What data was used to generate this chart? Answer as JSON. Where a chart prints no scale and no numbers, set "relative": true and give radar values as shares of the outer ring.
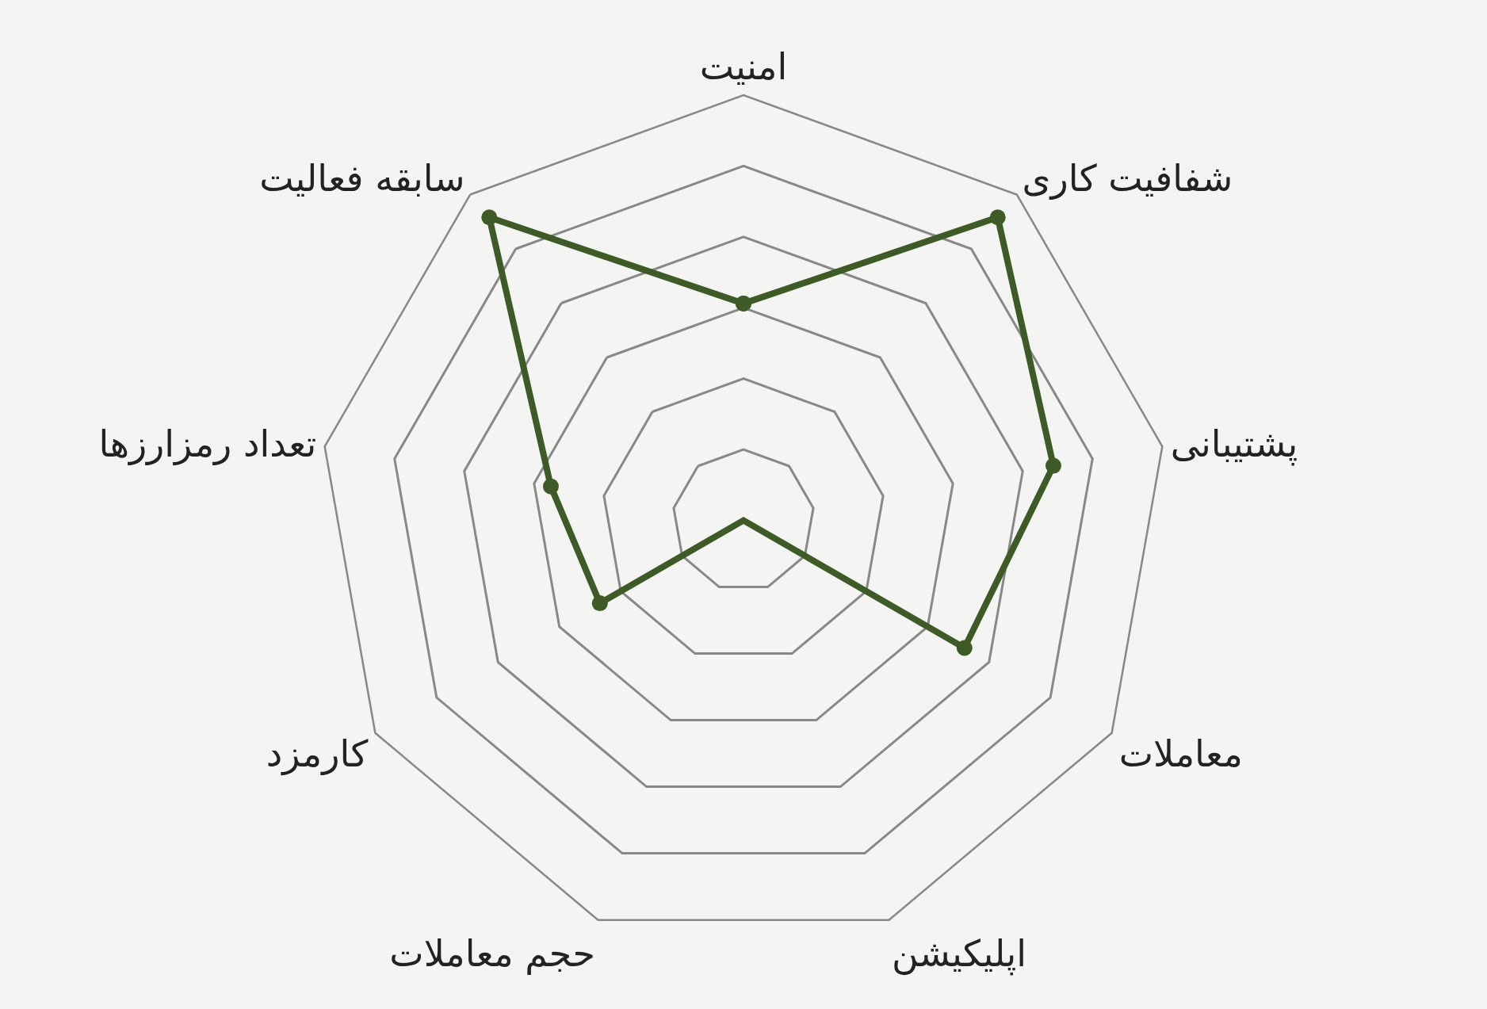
{
  "chart_data": {
    "type": "radar",
    "relative": true,
    "categories": [
      "امنیت",
      "شفافیت کاری",
      "پشتیبانی",
      "معاملات",
      "اپلیکیشن",
      "حجم معاملات",
      "کارمزد",
      "تعداد رمزارزها",
      "سابقه فعالیت"
    ],
    "series": [
      {
        "color": "#3d5a27",
        "values": [
          0.51,
          0.93,
          0.74,
          0.6,
          0,
          0,
          0.39,
          0.46,
          0.93
        ]
      }
    ],
    "marker": "circle",
    "grid": true,
    "legend": false
  }
}
